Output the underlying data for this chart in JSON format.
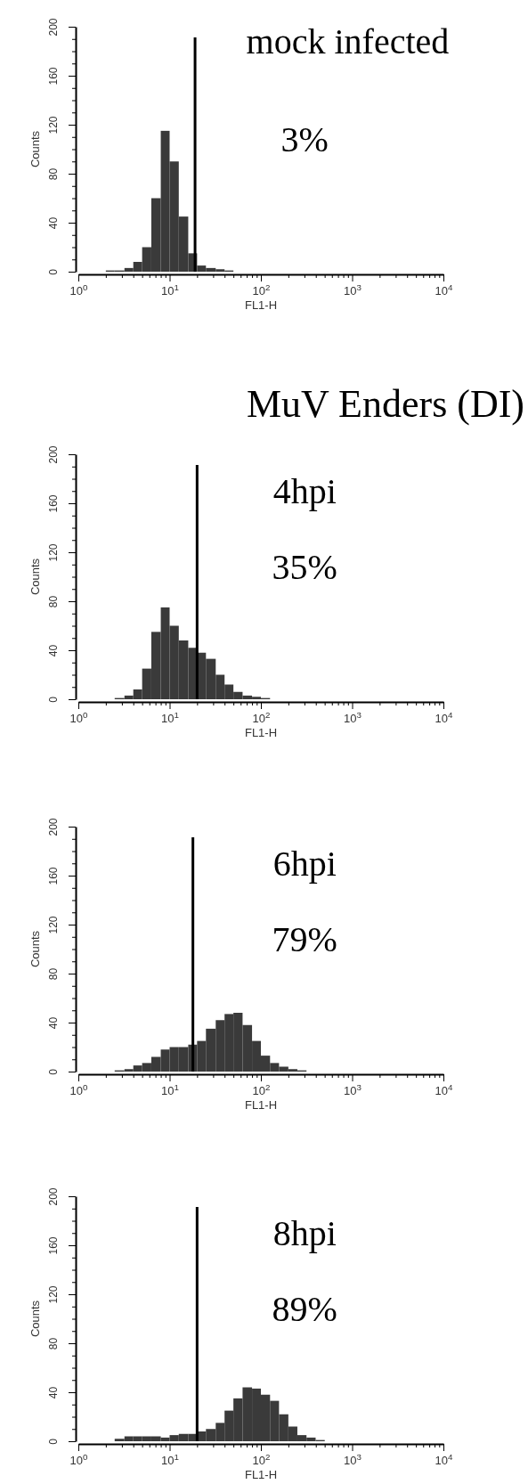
{
  "chart_data": [
    {
      "type": "histogram",
      "xlabel": "FL1-H",
      "ylabel": "Counts",
      "log": "x",
      "color": "#3a3a3a",
      "annotations": [
        "mock infected",
        "3%"
      ],
      "bins": [
        2,
        2.5,
        3.2,
        4,
        5,
        6.3,
        8,
        10,
        12.6,
        16,
        20,
        25,
        32,
        40,
        50
      ],
      "values": [
        1,
        1,
        3,
        8,
        20,
        60,
        115,
        90,
        45,
        15,
        5,
        3,
        2,
        1
      ],
      "xlim": [
        1,
        10000
      ],
      "xticks": [
        {
          "value": 1,
          "label": "10$^{0}$"
        },
        {
          "value": 2,
          "label": null
        },
        {
          "value": 3,
          "label": null
        },
        {
          "value": 4,
          "label": null
        },
        {
          "value": 5,
          "label": null
        },
        {
          "value": 6,
          "label": null
        },
        {
          "value": 7,
          "label": null
        },
        {
          "value": 8,
          "label": null
        },
        {
          "value": 9,
          "label": null
        },
        {
          "value": 10,
          "label": "10$^{1}$"
        },
        {
          "value": 20,
          "label": null
        },
        {
          "value": 30,
          "label": null
        },
        {
          "value": 40,
          "label": null
        },
        {
          "value": 50,
          "label": null
        },
        {
          "value": 60,
          "label": null
        },
        {
          "value": 70,
          "label": null
        },
        {
          "value": 80,
          "label": null
        },
        {
          "value": 90,
          "label": null
        },
        {
          "value": 100,
          "label": "10$^{2}$"
        },
        {
          "value": 200,
          "label": null
        },
        {
          "value": 300,
          "label": null
        },
        {
          "value": 400,
          "label": null
        },
        {
          "value": 500,
          "label": null
        },
        {
          "value": 600,
          "label": null
        },
        {
          "value": 700,
          "label": null
        },
        {
          "value": 800,
          "label": null
        },
        {
          "value": 900,
          "label": null
        },
        {
          "value": 1000,
          "label": "10$^{3}$"
        },
        {
          "value": 2000,
          "label": null
        },
        {
          "value": 3000,
          "label": null
        },
        {
          "value": 4000,
          "label": null
        },
        {
          "value": 5000,
          "label": null
        },
        {
          "value": 6000,
          "label": null
        },
        {
          "value": 7000,
          "label": null
        },
        {
          "value": 8000,
          "label": null
        },
        {
          "value": 9000,
          "label": null
        },
        {
          "value": 10000,
          "label": "10$^{4}$"
        }
      ],
      "ylim": [
        0,
        200
      ],
      "yticks": [
        0,
        {
          "value": 10,
          "label": null
        },
        {
          "value": 20,
          "label": null
        },
        {
          "value": 30,
          "label": null
        },
        40,
        {
          "value": 50,
          "label": null
        },
        {
          "value": 60,
          "label": null
        },
        {
          "value": 70,
          "label": null
        },
        80,
        {
          "value": 90,
          "label": null
        },
        {
          "value": 100,
          "label": null
        },
        {
          "value": 110,
          "label": null
        },
        120,
        {
          "value": 130,
          "label": null
        },
        {
          "value": 140,
          "label": null
        },
        {
          "value": 150,
          "label": null
        },
        160,
        {
          "value": 170,
          "label": null
        },
        {
          "value": 180,
          "label": null
        },
        {
          "value": 190,
          "label": null
        },
        200
      ],
      "ref_lines": [
        {
          "axis": "x",
          "value": 19,
          "color": "#000000"
        }
      ]
    },
    {
      "type": "histogram",
      "title": "MuV Enders (DI)",
      "xlabel": "FL1-H",
      "ylabel": "Counts",
      "log": "x",
      "color": "#3a3a3a",
      "annotations": [
        "4hpi",
        "35%"
      ],
      "bins": [
        2.5,
        3.2,
        4,
        5,
        6.3,
        8,
        10,
        12.6,
        16,
        20,
        25,
        32,
        40,
        50,
        63,
        80,
        100,
        126
      ],
      "values": [
        1,
        3,
        8,
        25,
        55,
        75,
        60,
        48,
        42,
        38,
        33,
        20,
        12,
        6,
        3,
        2,
        1
      ],
      "xlim": [
        1,
        10000
      ],
      "xticks": [
        {
          "value": 1,
          "label": "10$^{0}$"
        },
        {
          "value": 2,
          "label": null
        },
        {
          "value": 3,
          "label": null
        },
        {
          "value": 4,
          "label": null
        },
        {
          "value": 5,
          "label": null
        },
        {
          "value": 6,
          "label": null
        },
        {
          "value": 7,
          "label": null
        },
        {
          "value": 8,
          "label": null
        },
        {
          "value": 9,
          "label": null
        },
        {
          "value": 10,
          "label": "10$^{1}$"
        },
        {
          "value": 20,
          "label": null
        },
        {
          "value": 30,
          "label": null
        },
        {
          "value": 40,
          "label": null
        },
        {
          "value": 50,
          "label": null
        },
        {
          "value": 60,
          "label": null
        },
        {
          "value": 70,
          "label": null
        },
        {
          "value": 80,
          "label": null
        },
        {
          "value": 90,
          "label": null
        },
        {
          "value": 100,
          "label": "10$^{2}$"
        },
        {
          "value": 200,
          "label": null
        },
        {
          "value": 300,
          "label": null
        },
        {
          "value": 400,
          "label": null
        },
        {
          "value": 500,
          "label": null
        },
        {
          "value": 600,
          "label": null
        },
        {
          "value": 700,
          "label": null
        },
        {
          "value": 800,
          "label": null
        },
        {
          "value": 900,
          "label": null
        },
        {
          "value": 1000,
          "label": "10$^{3}$"
        },
        {
          "value": 2000,
          "label": null
        },
        {
          "value": 3000,
          "label": null
        },
        {
          "value": 4000,
          "label": null
        },
        {
          "value": 5000,
          "label": null
        },
        {
          "value": 6000,
          "label": null
        },
        {
          "value": 7000,
          "label": null
        },
        {
          "value": 8000,
          "label": null
        },
        {
          "value": 9000,
          "label": null
        },
        {
          "value": 10000,
          "label": "10$^{4}$"
        }
      ],
      "ylim": [
        0,
        200
      ],
      "yticks": [
        0,
        {
          "value": 10,
          "label": null
        },
        {
          "value": 20,
          "label": null
        },
        {
          "value": 30,
          "label": null
        },
        40,
        {
          "value": 50,
          "label": null
        },
        {
          "value": 60,
          "label": null
        },
        {
          "value": 70,
          "label": null
        },
        80,
        {
          "value": 90,
          "label": null
        },
        {
          "value": 100,
          "label": null
        },
        {
          "value": 110,
          "label": null
        },
        120,
        {
          "value": 130,
          "label": null
        },
        {
          "value": 140,
          "label": null
        },
        {
          "value": 150,
          "label": null
        },
        160,
        {
          "value": 170,
          "label": null
        },
        {
          "value": 180,
          "label": null
        },
        {
          "value": 190,
          "label": null
        },
        200
      ],
      "ref_lines": [
        {
          "axis": "x",
          "value": 20,
          "color": "#000000"
        }
      ]
    },
    {
      "type": "histogram",
      "xlabel": "FL1-H",
      "ylabel": "Counts",
      "log": "x",
      "color": "#3a3a3a",
      "annotations": [
        "6hpi",
        "79%"
      ],
      "bins": [
        2.5,
        3.2,
        4,
        5,
        6.3,
        8,
        10,
        12.6,
        16,
        20,
        25,
        32,
        40,
        50,
        63,
        80,
        100,
        126,
        158,
        200,
        251,
        316
      ],
      "values": [
        1,
        2,
        5,
        7,
        12,
        18,
        20,
        20,
        22,
        25,
        35,
        42,
        47,
        48,
        38,
        25,
        13,
        7,
        4,
        2,
        1
      ],
      "xlim": [
        1,
        10000
      ],
      "xticks": [
        {
          "value": 1,
          "label": "10$^{0}$"
        },
        {
          "value": 2,
          "label": null
        },
        {
          "value": 3,
          "label": null
        },
        {
          "value": 4,
          "label": null
        },
        {
          "value": 5,
          "label": null
        },
        {
          "value": 6,
          "label": null
        },
        {
          "value": 7,
          "label": null
        },
        {
          "value": 8,
          "label": null
        },
        {
          "value": 9,
          "label": null
        },
        {
          "value": 10,
          "label": "10$^{1}$"
        },
        {
          "value": 20,
          "label": null
        },
        {
          "value": 30,
          "label": null
        },
        {
          "value": 40,
          "label": null
        },
        {
          "value": 50,
          "label": null
        },
        {
          "value": 60,
          "label": null
        },
        {
          "value": 70,
          "label": null
        },
        {
          "value": 80,
          "label": null
        },
        {
          "value": 90,
          "label": null
        },
        {
          "value": 100,
          "label": "10$^{2}$"
        },
        {
          "value": 200,
          "label": null
        },
        {
          "value": 300,
          "label": null
        },
        {
          "value": 400,
          "label": null
        },
        {
          "value": 500,
          "label": null
        },
        {
          "value": 600,
          "label": null
        },
        {
          "value": 700,
          "label": null
        },
        {
          "value": 800,
          "label": null
        },
        {
          "value": 900,
          "label": null
        },
        {
          "value": 1000,
          "label": "10$^{3}$"
        },
        {
          "value": 2000,
          "label": null
        },
        {
          "value": 3000,
          "label": null
        },
        {
          "value": 4000,
          "label": null
        },
        {
          "value": 5000,
          "label": null
        },
        {
          "value": 6000,
          "label": null
        },
        {
          "value": 7000,
          "label": null
        },
        {
          "value": 8000,
          "label": null
        },
        {
          "value": 9000,
          "label": null
        },
        {
          "value": 10000,
          "label": "10$^{4}$"
        }
      ],
      "ylim": [
        0,
        200
      ],
      "yticks": [
        0,
        {
          "value": 10,
          "label": null
        },
        {
          "value": 20,
          "label": null
        },
        {
          "value": 30,
          "label": null
        },
        40,
        {
          "value": 50,
          "label": null
        },
        {
          "value": 60,
          "label": null
        },
        {
          "value": 70,
          "label": null
        },
        80,
        {
          "value": 90,
          "label": null
        },
        {
          "value": 100,
          "label": null
        },
        {
          "value": 110,
          "label": null
        },
        120,
        {
          "value": 130,
          "label": null
        },
        {
          "value": 140,
          "label": null
        },
        {
          "value": 150,
          "label": null
        },
        160,
        {
          "value": 170,
          "label": null
        },
        {
          "value": 180,
          "label": null
        },
        {
          "value": 190,
          "label": null
        },
        200
      ],
      "ref_lines": [
        {
          "axis": "x",
          "value": 18,
          "color": "#000000"
        }
      ]
    },
    {
      "type": "histogram",
      "xlabel": "FL1-H",
      "ylabel": "Counts",
      "log": "x",
      "color": "#3a3a3a",
      "annotations": [
        "8hpi",
        "89%"
      ],
      "bins": [
        2.5,
        3.2,
        4,
        5,
        6.3,
        8,
        10,
        12.6,
        16,
        20,
        25,
        32,
        40,
        50,
        63,
        80,
        100,
        126,
        158,
        200,
        251,
        316,
        398,
        501
      ],
      "values": [
        2,
        4,
        4,
        4,
        4,
        3,
        5,
        6,
        6,
        8,
        10,
        15,
        25,
        35,
        44,
        43,
        38,
        33,
        22,
        12,
        5,
        3,
        1
      ],
      "xlim": [
        1,
        10000
      ],
      "xticks": [
        {
          "value": 1,
          "label": "10$^{0}$"
        },
        {
          "value": 2,
          "label": null
        },
        {
          "value": 3,
          "label": null
        },
        {
          "value": 4,
          "label": null
        },
        {
          "value": 5,
          "label": null
        },
        {
          "value": 6,
          "label": null
        },
        {
          "value": 7,
          "label": null
        },
        {
          "value": 8,
          "label": null
        },
        {
          "value": 9,
          "label": null
        },
        {
          "value": 10,
          "label": "10$^{1}$"
        },
        {
          "value": 20,
          "label": null
        },
        {
          "value": 30,
          "label": null
        },
        {
          "value": 40,
          "label": null
        },
        {
          "value": 50,
          "label": null
        },
        {
          "value": 60,
          "label": null
        },
        {
          "value": 70,
          "label": null
        },
        {
          "value": 80,
          "label": null
        },
        {
          "value": 90,
          "label": null
        },
        {
          "value": 100,
          "label": "10$^{2}$"
        },
        {
          "value": 200,
          "label": null
        },
        {
          "value": 300,
          "label": null
        },
        {
          "value": 400,
          "label": null
        },
        {
          "value": 500,
          "label": null
        },
        {
          "value": 600,
          "label": null
        },
        {
          "value": 700,
          "label": null
        },
        {
          "value": 800,
          "label": null
        },
        {
          "value": 900,
          "label": null
        },
        {
          "value": 1000,
          "label": "10$^{3}$"
        },
        {
          "value": 2000,
          "label": null
        },
        {
          "value": 3000,
          "label": null
        },
        {
          "value": 4000,
          "label": null
        },
        {
          "value": 5000,
          "label": null
        },
        {
          "value": 6000,
          "label": null
        },
        {
          "value": 7000,
          "label": null
        },
        {
          "value": 8000,
          "label": null
        },
        {
          "value": 9000,
          "label": null
        },
        {
          "value": 10000,
          "label": "10$^{4}$"
        }
      ],
      "ylim": [
        0,
        200
      ],
      "yticks": [
        0,
        {
          "value": 10,
          "label": null
        },
        {
          "value": 20,
          "label": null
        },
        {
          "value": 30,
          "label": null
        },
        40,
        {
          "value": 50,
          "label": null
        },
        {
          "value": 60,
          "label": null
        },
        {
          "value": 70,
          "label": null
        },
        80,
        {
          "value": 90,
          "label": null
        },
        {
          "value": 100,
          "label": null
        },
        {
          "value": 110,
          "label": null
        },
        120,
        {
          "value": 130,
          "label": null
        },
        {
          "value": 140,
          "label": null
        },
        {
          "value": 150,
          "label": null
        },
        160,
        {
          "value": 170,
          "label": null
        },
        {
          "value": 180,
          "label": null
        },
        {
          "value": 190,
          "label": null
        },
        200
      ],
      "ref_lines": [
        {
          "axis": "x",
          "value": 20,
          "color": "#000000"
        }
      ]
    }
  ]
}
